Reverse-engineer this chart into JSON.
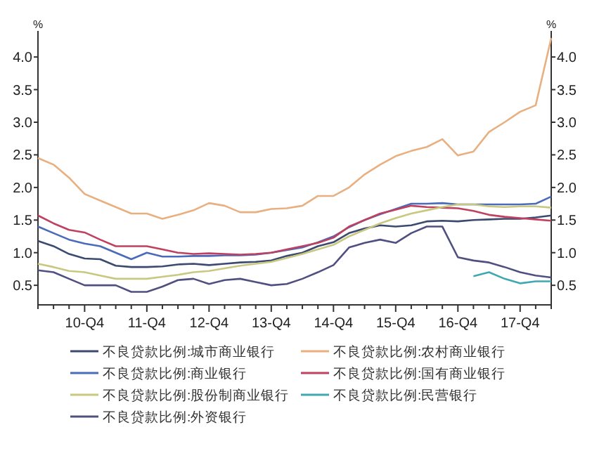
{
  "chart_data": {
    "type": "line",
    "ylabel": "%",
    "y2label": "%",
    "categories": [
      null,
      null,
      null,
      "10-Q4",
      null,
      null,
      null,
      "11-Q4",
      null,
      null,
      null,
      "12-Q4",
      null,
      null,
      null,
      "13-Q4",
      null,
      null,
      null,
      "14-Q4",
      null,
      null,
      null,
      "15-Q4",
      null,
      null,
      null,
      "16-Q4",
      null,
      null,
      null,
      "17-Q4",
      null,
      null
    ],
    "ylim": [
      0.2,
      4.4
    ],
    "yticks": [
      0.5,
      {
        "value": 1,
        "label": "1.0"
      },
      1.5,
      {
        "value": 2,
        "label": "2.0"
      },
      2.5,
      {
        "value": 3,
        "label": "3.0"
      },
      3.5,
      {
        "value": 4,
        "label": "4.0"
      }
    ],
    "y2lim": [
      0.2,
      4.4
    ],
    "y2ticks": [
      0.5,
      {
        "value": 1,
        "label": "1.0"
      },
      1.5,
      {
        "value": 2,
        "label": "2.0"
      },
      2.5,
      {
        "value": 3,
        "label": "3.0"
      },
      3.5,
      {
        "value": 4,
        "label": "4.0"
      }
    ],
    "grid": false,
    "legend": "bottom",
    "marker": "none",
    "line_style": "solid",
    "series": [
      {
        "name": "不良贷款比例:城市商业银行",
        "color": "#3c4a70",
        "values": [
          1.18,
          1.1,
          0.98,
          0.91,
          0.9,
          0.8,
          0.78,
          0.78,
          0.79,
          0.82,
          0.83,
          0.81,
          0.83,
          0.85,
          0.86,
          0.88,
          0.95,
          1.0,
          1.1,
          1.16,
          1.3,
          1.37,
          1.42,
          1.4,
          1.42,
          1.48,
          1.49,
          1.48,
          1.5,
          1.51,
          1.52,
          1.52,
          1.54,
          1.57
        ]
      },
      {
        "name": "不良贷款比例:农村商业银行",
        "color": "#e8b080",
        "values": [
          2.45,
          2.35,
          2.15,
          1.9,
          1.8,
          1.7,
          1.6,
          1.6,
          1.52,
          1.58,
          1.65,
          1.76,
          1.72,
          1.62,
          1.62,
          1.67,
          1.68,
          1.72,
          1.87,
          1.87,
          2.0,
          2.2,
          2.35,
          2.48,
          2.56,
          2.62,
          2.74,
          2.49,
          2.55,
          2.85,
          3.0,
          3.16,
          3.26,
          4.29
        ]
      },
      {
        "name": "不良贷款比例:商业银行",
        "color": "#4a6aba",
        "values": [
          1.4,
          1.3,
          1.2,
          1.14,
          1.1,
          1.0,
          0.9,
          1.0,
          0.94,
          0.94,
          0.95,
          0.95,
          0.96,
          0.96,
          0.97,
          1.0,
          1.04,
          1.08,
          1.16,
          1.25,
          1.39,
          1.5,
          1.59,
          1.67,
          1.75,
          1.75,
          1.76,
          1.74,
          1.74,
          1.74,
          1.74,
          1.74,
          1.75,
          1.86
        ]
      },
      {
        "name": "不良贷款比例:国有商业银行",
        "color": "#c04060",
        "values": [
          1.57,
          1.45,
          1.35,
          1.31,
          1.2,
          1.1,
          1.1,
          1.1,
          1.05,
          1.0,
          0.98,
          0.99,
          0.98,
          0.97,
          0.98,
          1.0,
          1.05,
          1.1,
          1.15,
          1.23,
          1.4,
          1.5,
          1.6,
          1.66,
          1.72,
          1.7,
          1.69,
          1.68,
          1.64,
          1.58,
          1.55,
          1.53,
          1.51,
          1.49
        ]
      },
      {
        "name": "不良贷款比例:股份制商业银行",
        "color": "#c8c880",
        "values": [
          0.83,
          0.78,
          0.72,
          0.7,
          0.65,
          0.6,
          0.6,
          0.6,
          0.63,
          0.66,
          0.7,
          0.72,
          0.76,
          0.8,
          0.83,
          0.86,
          0.92,
          0.98,
          1.05,
          1.12,
          1.25,
          1.35,
          1.45,
          1.53,
          1.6,
          1.65,
          1.7,
          1.74,
          1.74,
          1.71,
          1.7,
          1.71,
          1.71,
          1.69
        ]
      },
      {
        "name": "不良贷款比例:民营银行",
        "color": "#40a8b0",
        "values": [
          null,
          null,
          null,
          null,
          null,
          null,
          null,
          null,
          null,
          null,
          null,
          null,
          null,
          null,
          null,
          null,
          null,
          null,
          null,
          null,
          null,
          null,
          null,
          null,
          null,
          null,
          null,
          null,
          0.64,
          0.7,
          0.6,
          0.53,
          0.56,
          0.56
        ]
      },
      {
        "name": "不良贷款比例:外资银行",
        "color": "#505080",
        "values": [
          0.73,
          0.7,
          0.6,
          0.5,
          0.5,
          0.5,
          0.4,
          0.4,
          0.48,
          0.58,
          0.6,
          0.52,
          0.58,
          0.6,
          0.55,
          0.5,
          0.52,
          0.6,
          0.7,
          0.81,
          1.08,
          1.15,
          1.2,
          1.15,
          1.3,
          1.4,
          1.4,
          0.93,
          0.88,
          0.85,
          0.78,
          0.7,
          0.65,
          0.62
        ]
      }
    ]
  }
}
